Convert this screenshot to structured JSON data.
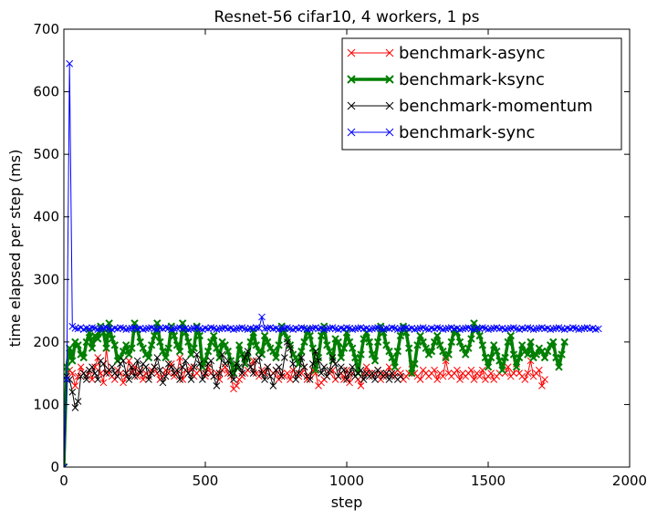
{
  "chart_data": {
    "type": "line",
    "title": "Resnet-56 cifar10, 4 workers, 1 ps",
    "xlabel": "step",
    "ylabel": "time elapsed per step (ms)",
    "xlim": [
      0,
      2000
    ],
    "ylim": [
      0,
      700
    ],
    "xticks": [
      0,
      500,
      1000,
      1500,
      2000
    ],
    "yticks": [
      0,
      100,
      200,
      300,
      400,
      500,
      600,
      700
    ],
    "grid": false,
    "legend_position": "top-right",
    "series": [
      {
        "name": "benchmark-async",
        "color": "#ff0000",
        "marker": "x",
        "x_start": 0,
        "x_step": 10,
        "values": [
          0,
          140,
          155,
          150,
          130,
          145,
          160,
          150,
          145,
          155,
          140,
          160,
          175,
          150,
          135,
          190,
          150,
          145,
          140,
          155,
          150,
          135,
          145,
          170,
          150,
          160,
          145,
          155,
          140,
          150,
          145,
          155,
          160,
          150,
          140,
          145,
          155,
          150,
          165,
          145,
          150,
          175,
          140,
          155,
          150,
          160,
          145,
          150,
          155,
          170,
          145,
          160,
          150,
          145,
          150,
          140,
          155,
          160,
          150,
          145,
          125,
          130,
          140,
          145,
          150,
          155,
          160,
          170,
          150,
          145,
          155,
          150,
          160,
          145,
          150,
          155,
          140,
          150,
          145,
          150,
          140,
          155,
          150,
          145,
          150,
          160,
          140,
          145,
          155,
          150,
          130,
          135,
          140,
          145,
          150,
          155,
          140,
          145,
          150,
          140,
          155,
          135,
          150,
          145,
          140,
          130,
          150,
          160,
          150,
          145,
          150,
          155,
          140,
          150,
          145,
          160,
          145,
          150,
          155,
          150,
          140,
          145,
          150,
          165,
          150,
          145,
          140,
          155,
          150,
          145,
          150,
          155,
          140,
          150,
          145,
          170,
          150,
          145,
          150,
          155,
          140,
          150,
          145,
          150,
          155,
          140,
          150,
          145,
          155,
          140,
          145,
          150,
          140,
          145,
          150,
          155,
          150,
          160,
          145,
          150,
          165,
          150,
          145,
          140,
          150,
          170,
          145,
          150,
          155,
          130,
          140
        ]
      },
      {
        "name": "benchmark-ksync",
        "color": "#007f00",
        "marker": "x",
        "x_start": 0,
        "x_step": 10,
        "values": [
          0,
          160,
          190,
          170,
          200,
          195,
          180,
          175,
          200,
          215,
          190,
          210,
          205,
          225,
          215,
          190,
          230,
          205,
          195,
          170,
          175,
          185,
          195,
          180,
          190,
          230,
          220,
          200,
          190,
          180,
          175,
          195,
          210,
          230,
          200,
          185,
          175,
          190,
          225,
          210,
          195,
          185,
          230,
          215,
          200,
          180,
          190,
          225,
          210,
          160,
          170,
          185,
          200,
          210,
          190,
          175,
          200,
          195,
          185,
          170,
          150,
          160,
          195,
          180,
          165,
          175,
          200,
          215,
          195,
          185,
          180,
          210,
          200,
          190,
          185,
          175,
          195,
          225,
          215,
          205,
          195,
          180,
          175,
          165,
          185,
          200,
          220,
          210,
          190,
          155,
          175,
          210,
          225,
          195,
          185,
          170,
          205,
          200,
          175,
          190,
          215,
          200,
          190,
          175,
          150,
          180,
          205,
          215,
          200,
          180,
          170,
          200,
          225,
          215,
          195,
          185,
          175,
          160,
          185,
          210,
          225,
          215,
          190,
          150,
          165,
          195,
          210,
          200,
          190,
          180,
          185,
          200,
          210,
          195,
          185,
          175,
          180,
          200,
          220,
          215,
          200,
          190,
          180,
          190,
          205,
          230,
          220,
          210,
          195,
          175,
          160,
          175,
          195,
          185,
          170,
          155,
          175,
          200,
          210,
          180,
          160,
          175,
          195,
          185,
          180,
          200,
          175,
          180,
          190,
          185,
          175,
          185,
          195,
          200,
          175,
          160,
          180,
          200
        ]
      },
      {
        "name": "benchmark-momentum",
        "color": "#000000",
        "marker": "x",
        "x_start": 0,
        "x_step": 10,
        "values": [
          0,
          145,
          140,
          120,
          95,
          105,
          145,
          150,
          140,
          155,
          160,
          150,
          140,
          170,
          165,
          150,
          155,
          160,
          150,
          145,
          165,
          170,
          150,
          140,
          160,
          145,
          170,
          150,
          165,
          160,
          140,
          150,
          160,
          175,
          155,
          135,
          145,
          165,
          160,
          150,
          155,
          140,
          160,
          170,
          150,
          140,
          160,
          180,
          165,
          140,
          150,
          165,
          170,
          145,
          130,
          150,
          180,
          165,
          170,
          150,
          140,
          165,
          160,
          150,
          175,
          185,
          160,
          150,
          170,
          175,
          150,
          140,
          160,
          145,
          130,
          155,
          160,
          145,
          175,
          200,
          190,
          165,
          140,
          150,
          175,
          160,
          145,
          140,
          165,
          185,
          170,
          150,
          160,
          145,
          155,
          175,
          165,
          145,
          160,
          155,
          140,
          150,
          160,
          145,
          150,
          155,
          140,
          150,
          145,
          150,
          140,
          155,
          150,
          145,
          150,
          140,
          150,
          145,
          140,
          145
        ]
      },
      {
        "name": "benchmark-sync",
        "color": "#0000ff",
        "marker": "x",
        "x_start": 0,
        "x_step": 10,
        "values": [
          0,
          140,
          645,
          225,
          222,
          221,
          223,
          220,
          222,
          221,
          223,
          222,
          220,
          221,
          222,
          223,
          221,
          220,
          222,
          221,
          223,
          222,
          220,
          221,
          222,
          223,
          221,
          222,
          220,
          221,
          222,
          223,
          221,
          220,
          222,
          221,
          223,
          222,
          220,
          221,
          222,
          223,
          221,
          222,
          220,
          221,
          222,
          223,
          221,
          220,
          222,
          221,
          223,
          222,
          220,
          221,
          222,
          223,
          221,
          222,
          220,
          221,
          222,
          223,
          221,
          220,
          222,
          221,
          223,
          222,
          240,
          221,
          222,
          223,
          221,
          222,
          220,
          221,
          222,
          223,
          221,
          220,
          222,
          221,
          223,
          222,
          220,
          221,
          222,
          223,
          221,
          222,
          220,
          221,
          222,
          223,
          221,
          220,
          222,
          221,
          223,
          222,
          220,
          221,
          222,
          223,
          221,
          222,
          220,
          221,
          222,
          223,
          221,
          220,
          222,
          221,
          223,
          222,
          220,
          221,
          222,
          223,
          221,
          222,
          220,
          221,
          222,
          223,
          221,
          220,
          222,
          221,
          223,
          222,
          220,
          221,
          222,
          223,
          221,
          222,
          220,
          221,
          222,
          223,
          221,
          220,
          222,
          221,
          223,
          222,
          220,
          221,
          222,
          223,
          221,
          222,
          220,
          221,
          222,
          223,
          221,
          220,
          222,
          221,
          223,
          222,
          220,
          221,
          222,
          223,
          221,
          222,
          220,
          221,
          222,
          223,
          221,
          220,
          222,
          221,
          223,
          222,
          220,
          221,
          222,
          223,
          221,
          222,
          220,
          221
        ]
      }
    ]
  }
}
